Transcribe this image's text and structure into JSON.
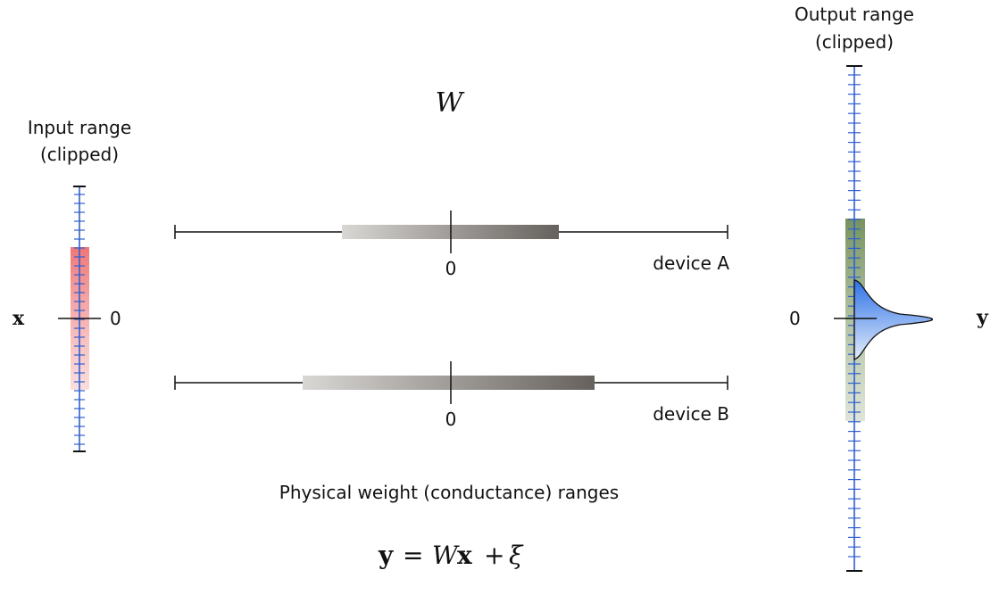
{
  "input": {
    "title_line1": "Input range",
    "title_line2": "(clipped)",
    "variable": "x",
    "zero": "0"
  },
  "weights": {
    "symbol": "W",
    "devices": [
      {
        "label": "device A",
        "zero": "0"
      },
      {
        "label": "device B",
        "zero": "0"
      }
    ],
    "caption": "Physical weight (conductance) ranges"
  },
  "output": {
    "title_line1": "Output range",
    "title_line2": "(clipped)",
    "variable": "y",
    "zero": "0"
  },
  "equation": {
    "lhs": "y",
    "eq": "=",
    "W": "W",
    "x": "x",
    "plus": "+",
    "xi": "ξ"
  },
  "colors": {
    "input_bar": "#f07a7a",
    "output_bar": "#7f9a66",
    "distribution": "#3b7be8",
    "scale_ticks": "#2f5fd0",
    "weight_bar": "#6f6a66"
  }
}
